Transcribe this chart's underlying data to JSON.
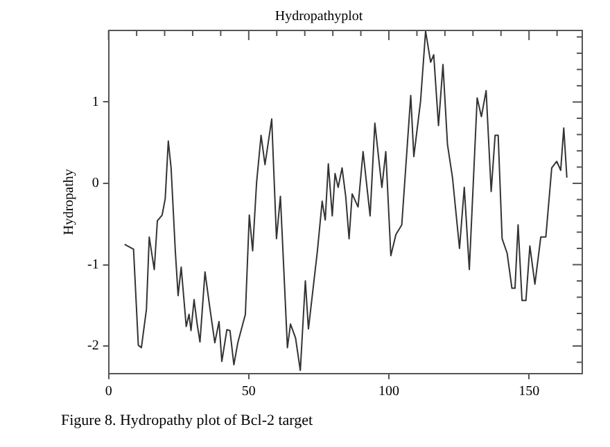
{
  "chart_data": {
    "type": "line",
    "title": "Hydropathyplot",
    "ylabel": "Hydropathy",
    "annotations": [
      "Figure 8. Hydropathy plot of Bcl-2 target"
    ],
    "series": [
      {
        "color": "#333333",
        "x": [
          5.7,
          8.9,
          10.6,
          11.7,
          13.5,
          14.5,
          16.3,
          17.4,
          19.1,
          20.2,
          21.3,
          22.3,
          23.8,
          24.8,
          25.9,
          27.7,
          28.7,
          29.4,
          30.5,
          31.6,
          32.6,
          34.4,
          36.2,
          37.9,
          39.4,
          40.4,
          42.2,
          43.3,
          44.7,
          46.1,
          48.8,
          50.2,
          51.4,
          52.8,
          54.4,
          55.8,
          58.2,
          59.9,
          61.3,
          63.8,
          64.9,
          66.7,
          68.4,
          70.2,
          71.3,
          74.5,
          76.2,
          77.3,
          78.4,
          79.8,
          80.8,
          81.9,
          83.3,
          84.6,
          85.8,
          86.9,
          89,
          90.8,
          93.3,
          95,
          97.5,
          98.9,
          100.7,
          102.5,
          104.6,
          107.8,
          108.9,
          111.3,
          113.1,
          114.9,
          116,
          117.7,
          119.3,
          120.9,
          122.7,
          125.2,
          126.9,
          128.7,
          131.5,
          133,
          134.7,
          136.5,
          137.9,
          139,
          140.4,
          142.2,
          143.9,
          145,
          146.1,
          147.5,
          148.9,
          150.3,
          152.1,
          154.2,
          156,
          158.1,
          159.9,
          161.3,
          162.4,
          163.5
        ],
        "values": [
          -0.75,
          -0.81,
          -1.99,
          -2.02,
          -1.55,
          -0.66,
          -1.06,
          -0.46,
          -0.39,
          -0.19,
          0.52,
          0.19,
          -0.83,
          -1.38,
          -1.03,
          -1.76,
          -1.61,
          -1.81,
          -1.43,
          -1.73,
          -1.95,
          -1.09,
          -1.55,
          -1.96,
          -1.7,
          -2.19,
          -1.8,
          -1.81,
          -2.23,
          -1.96,
          -1.61,
          -0.39,
          -0.83,
          0.01,
          0.59,
          0.23,
          0.79,
          -0.68,
          -0.16,
          -2.02,
          -1.73,
          -1.9,
          -2.3,
          -1.2,
          -1.79,
          -0.83,
          -0.22,
          -0.45,
          0.24,
          -0.4,
          0.12,
          -0.05,
          0.19,
          -0.16,
          -0.68,
          -0.13,
          -0.29,
          0.39,
          -0.4,
          0.74,
          -0.05,
          0.39,
          -0.89,
          -0.63,
          -0.51,
          1.08,
          0.33,
          1.01,
          1.87,
          1.49,
          1.58,
          0.71,
          1.46,
          0.48,
          0.07,
          -0.8,
          -0.05,
          -1.06,
          1.05,
          0.82,
          1.14,
          -0.1,
          0.59,
          0.59,
          -0.68,
          -0.86,
          -1.29,
          -1.29,
          -0.51,
          -1.44,
          -1.44,
          -0.77,
          -1.24,
          -0.66,
          -0.66,
          0.19,
          0.27,
          0.16,
          0.68,
          0.07
        ]
      }
    ],
    "xlim": [
      0,
      169
    ],
    "ylim": [
      -2.34,
      1.88
    ],
    "xticks": [
      0,
      {
        "value": 10,
        "label": null
      },
      {
        "value": 20,
        "label": null
      },
      {
        "value": 30,
        "label": null
      },
      {
        "value": 40,
        "label": null
      },
      50,
      {
        "value": 60,
        "label": null
      },
      {
        "value": 70,
        "label": null
      },
      {
        "value": 80,
        "label": null
      },
      {
        "value": 90,
        "label": null
      },
      100,
      {
        "value": 110,
        "label": null
      },
      {
        "value": 120,
        "label": null
      },
      {
        "value": 130,
        "label": null
      },
      {
        "value": 140,
        "label": null
      },
      150,
      {
        "value": 160,
        "label": null
      }
    ],
    "yticks": [
      {
        "value": -2.2,
        "label": null
      },
      -2,
      {
        "value": -1.8,
        "label": null
      },
      {
        "value": -1.6,
        "label": null
      },
      {
        "value": -1.4,
        "label": null
      },
      {
        "value": -1.2,
        "label": null
      },
      -1,
      {
        "value": -0.8,
        "label": null
      },
      {
        "value": -0.6,
        "label": null
      },
      {
        "value": -0.4,
        "label": null
      },
      {
        "value": -0.2,
        "label": null
      },
      0,
      {
        "value": 0.2,
        "label": null
      },
      {
        "value": 0.4,
        "label": null
      },
      {
        "value": 0.6,
        "label": null
      },
      {
        "value": 0.8,
        "label": null
      },
      1,
      {
        "value": 1.2,
        "label": null
      },
      {
        "value": 1.4,
        "label": null
      },
      {
        "value": 1.6,
        "label": null
      },
      {
        "value": 1.8,
        "label": null
      }
    ],
    "grid": false,
    "legend": false,
    "marker": "none",
    "line_style": "solid"
  }
}
